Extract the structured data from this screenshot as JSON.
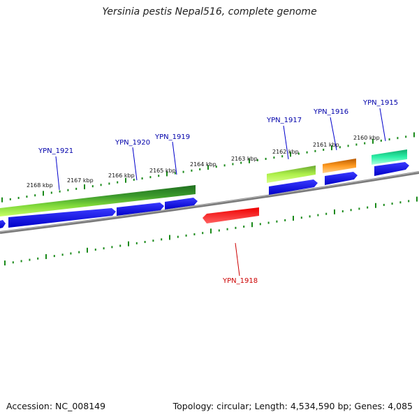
{
  "title": "Yersinia pestis Nepal516, complete genome",
  "footer": {
    "accession": "Accession: NC_008149",
    "summary": "Topology: circular; Length: 4,534,590 bp; Genes: 4,085"
  },
  "colors": {
    "cds_forward": "#0000ee",
    "backbone": "#888888",
    "tick": "#1a8a1a",
    "label_forward": "#0000aa",
    "label_reverse": "#cc0000"
  },
  "scale_ticks": [
    "2168 kbp",
    "2167 kbp",
    "2166 kbp",
    "2165 kbp",
    "2164 kbp",
    "2163 kbp",
    "2162 kbp",
    "2161 kbp",
    "2160 kbp"
  ],
  "genes": [
    {
      "name": "YPN_1921",
      "strand": "forward"
    },
    {
      "name": "YPN_1920",
      "strand": "forward"
    },
    {
      "name": "YPN_1919",
      "strand": "forward"
    },
    {
      "name": "YPN_1918",
      "strand": "reverse"
    },
    {
      "name": "YPN_1917",
      "strand": "forward"
    },
    {
      "name": "YPN_1916",
      "strand": "forward"
    },
    {
      "name": "YPN_1915",
      "strand": "forward"
    }
  ]
}
